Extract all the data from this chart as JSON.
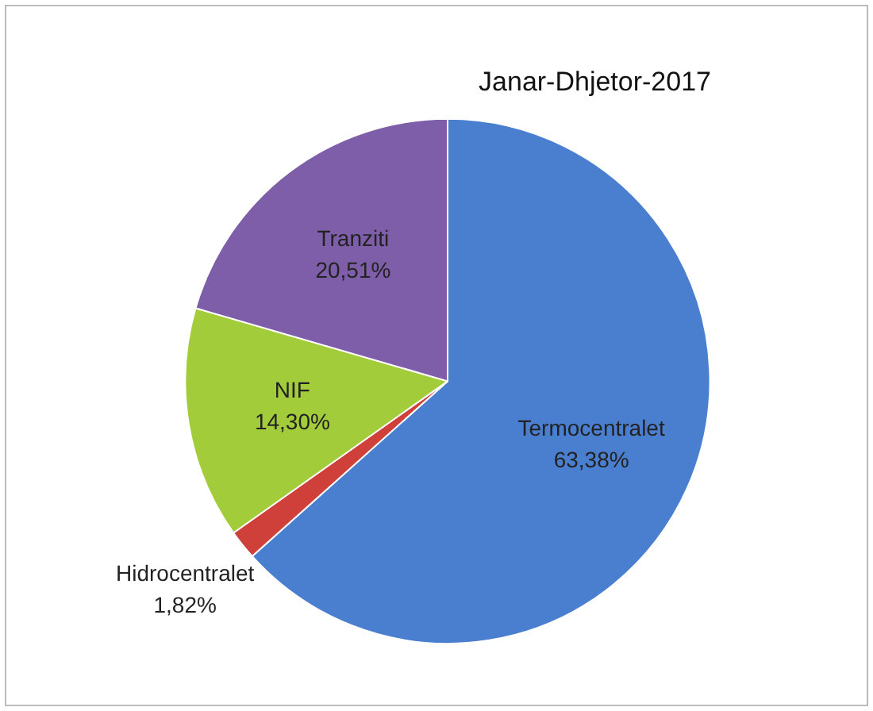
{
  "chart_data": {
    "type": "pie",
    "title": "Janar-Dhjetor-2017",
    "categories": [
      "Termocentralet",
      "Hidrocentralet",
      "NIF",
      "Tranziti"
    ],
    "values": [
      63.38,
      1.82,
      14.3,
      20.51
    ],
    "value_labels": [
      "63,38%",
      "1,82%",
      "14,30%",
      "20,51%"
    ],
    "colors": [
      "#4a7fd0",
      "#d0403a",
      "#a3cc3a",
      "#7e5ea8"
    ],
    "legend": false
  }
}
